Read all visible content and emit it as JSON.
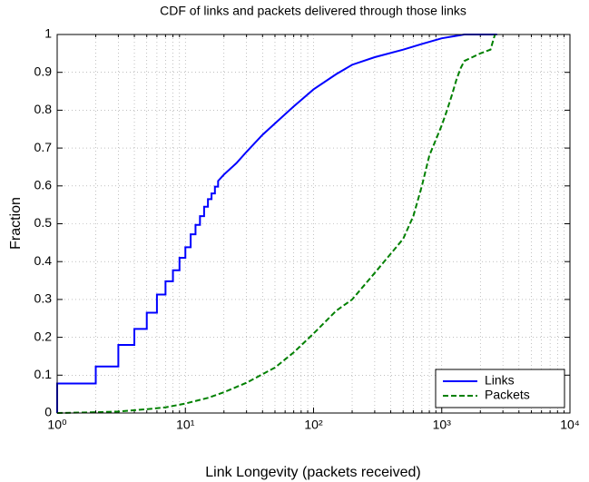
{
  "chart_data": {
    "type": "line",
    "title": "CDF of links and packets delivered through those links",
    "x_label": "Link Longevity (packets received)",
    "y_label": "Fraction",
    "xscale": "log",
    "xlim": [
      1,
      10000
    ],
    "xticks": [
      {
        "value": 1,
        "label": "10⁰"
      },
      {
        "value": 10,
        "label": "10¹"
      },
      {
        "value": 100,
        "label": "10²"
      },
      {
        "value": 1000,
        "label": "10³"
      },
      {
        "value": 10000,
        "label": "10⁴"
      }
    ],
    "ylim": [
      0,
      1
    ],
    "yticks": [
      0,
      0.1,
      0.2,
      0.3,
      0.4,
      0.5,
      0.6,
      0.7,
      0.8,
      0.9,
      1
    ],
    "grid": true,
    "legend": "lower right",
    "series": [
      {
        "name": "Links",
        "color": "#0000ff",
        "style": "solid",
        "x": [
          1,
          1,
          2,
          2,
          3,
          3,
          4,
          4,
          5,
          5,
          6,
          6,
          7,
          7,
          8,
          8,
          9,
          9,
          10,
          10,
          11,
          11,
          12,
          12,
          13,
          13,
          14,
          14,
          15,
          15,
          16,
          16,
          17,
          17,
          18,
          18,
          20,
          25,
          30,
          40,
          50,
          70,
          100,
          150,
          200,
          300,
          500,
          700,
          1000,
          1500,
          2700
        ],
        "values": [
          0,
          0.078,
          0.078,
          0.123,
          0.123,
          0.18,
          0.18,
          0.222,
          0.222,
          0.265,
          0.265,
          0.313,
          0.313,
          0.348,
          0.348,
          0.377,
          0.377,
          0.41,
          0.41,
          0.438,
          0.438,
          0.472,
          0.472,
          0.497,
          0.497,
          0.52,
          0.52,
          0.545,
          0.545,
          0.565,
          0.565,
          0.58,
          0.58,
          0.598,
          0.598,
          0.613,
          0.63,
          0.66,
          0.69,
          0.735,
          0.765,
          0.81,
          0.855,
          0.895,
          0.92,
          0.94,
          0.96,
          0.975,
          0.99,
          1,
          1
        ]
      },
      {
        "name": "Packets",
        "color": "#008000",
        "style": "dashed",
        "x": [
          1,
          2,
          3,
          5,
          7,
          10,
          15,
          20,
          30,
          50,
          70,
          100,
          150,
          200,
          300,
          500,
          600,
          700,
          800,
          1000,
          1100,
          1200,
          1300,
          1400,
          1500,
          2000,
          2400,
          2600
        ],
        "values": [
          0,
          0.002,
          0.004,
          0.01,
          0.015,
          0.025,
          0.04,
          0.055,
          0.08,
          0.12,
          0.16,
          0.21,
          0.27,
          0.3,
          0.37,
          0.46,
          0.52,
          0.6,
          0.68,
          0.76,
          0.8,
          0.84,
          0.88,
          0.91,
          0.93,
          0.95,
          0.96,
          1
        ]
      }
    ]
  }
}
